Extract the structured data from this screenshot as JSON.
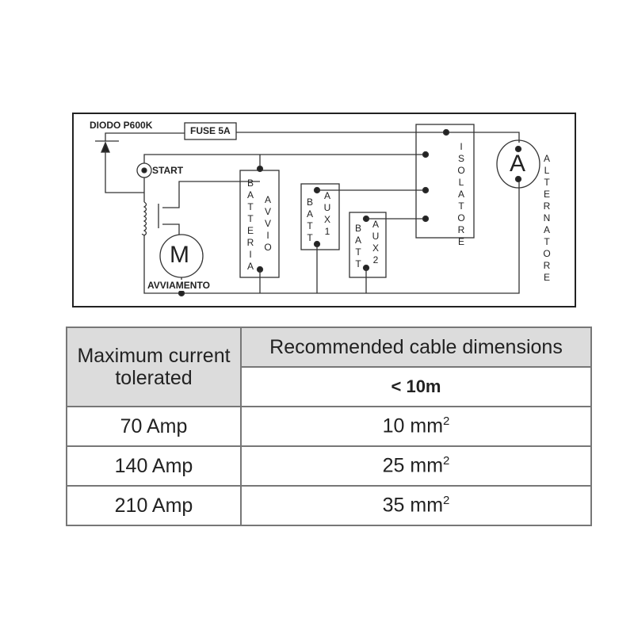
{
  "diagram": {
    "diode_label": "DIODO P600K",
    "fuse_label": "FUSE 5A",
    "start_label": "START",
    "motor_symbol": "M",
    "motor_label": "AVVIAMENTO",
    "battery_start": {
      "left": "BATTERIA",
      "right": "AVVIO"
    },
    "battery_aux1": {
      "left": "BATT",
      "right": "AUX1"
    },
    "battery_aux2": {
      "left": "BATT",
      "right": "AUX2"
    },
    "isolator_label": "ISOLATORE",
    "alternator_symbol": "A",
    "alternator_label": "ALTERNATORE"
  },
  "table": {
    "col1_header": "Maximum current tolerated",
    "col2_header": "Recommended cable dimensions",
    "col2_subheader": "< 10m",
    "unit_superscript": "2",
    "rows": [
      {
        "current": "70 Amp",
        "cable": "10 mm"
      },
      {
        "current": "140 Amp",
        "cable": "25 mm"
      },
      {
        "current": "210 Amp",
        "cable": "35 mm"
      }
    ]
  }
}
